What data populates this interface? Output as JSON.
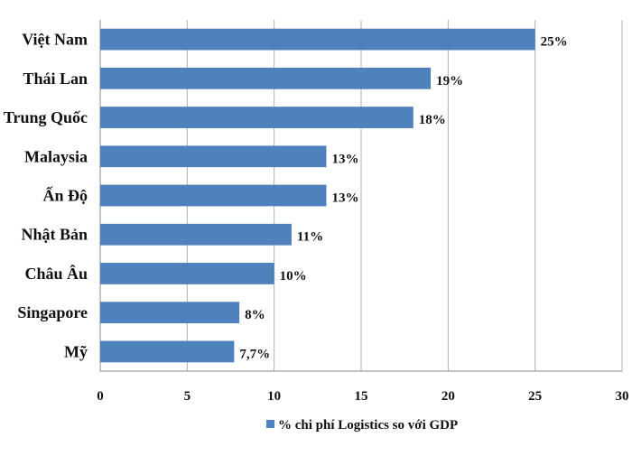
{
  "chart_data": {
    "type": "bar",
    "orientation": "horizontal",
    "categories": [
      "Việt Nam",
      "Thái Lan",
      "Trung Quốc",
      "Malaysia",
      "Ấn Độ",
      "Nhật Bản",
      "Châu Âu",
      "Singapore",
      "Mỹ"
    ],
    "series": [
      {
        "name": "% chi phí Logistics so với GDP",
        "values": [
          25,
          19,
          18,
          13,
          13,
          11,
          10,
          8,
          7.7
        ],
        "data_labels": [
          "25%",
          "19%",
          "18%",
          "13%",
          "13%",
          "11%",
          "10%",
          "8%",
          "7,7%"
        ],
        "color": "#4F81BD"
      }
    ],
    "x_ticks": [
      "0",
      "5",
      "10",
      "15",
      "20",
      "25",
      "30"
    ],
    "xlim": [
      0,
      30
    ],
    "grid": "vertical",
    "legend": "bottom",
    "title": "",
    "xlabel": "",
    "ylabel": ""
  }
}
